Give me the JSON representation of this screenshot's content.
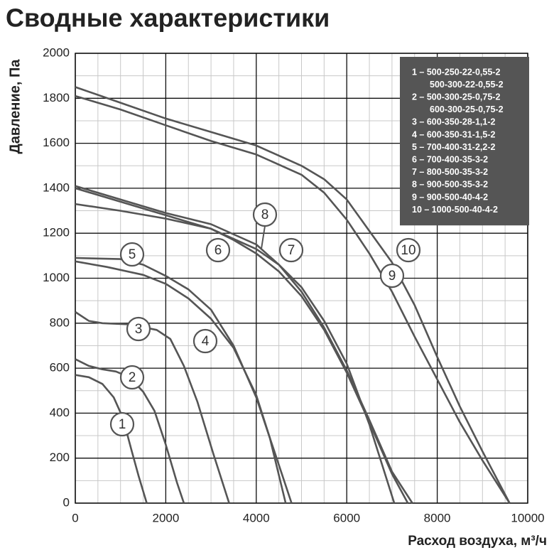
{
  "chart_data": {
    "type": "line",
    "title": "Сводные характеристики",
    "y_label": "Давление, Па",
    "x_label": "Расход воздуха, м³/ч",
    "xlim": [
      0,
      10000
    ],
    "xticks": [
      0,
      2000,
      4000,
      6000,
      8000,
      10000
    ],
    "ylim": [
      0,
      2000
    ],
    "yticks": [
      0,
      200,
      400,
      600,
      800,
      1000,
      1200,
      1400,
      1600,
      1800,
      2000
    ],
    "grid": true,
    "minor_grid": {
      "x_step": 500,
      "y_step": 100
    },
    "legend_position": "upper right",
    "series": [
      {
        "name": "1",
        "color": "#555555",
        "x": [
          0,
          300,
          600,
          850,
          1050,
          1250,
          1400,
          1580
        ],
        "values": [
          570,
          560,
          530,
          470,
          380,
          230,
          120,
          0
        ]
      },
      {
        "name": "2",
        "color": "#555555",
        "x": [
          0,
          300,
          600,
          900,
          1200,
          1500,
          1750,
          2000,
          2250,
          2400
        ],
        "values": [
          640,
          610,
          595,
          585,
          560,
          495,
          410,
          260,
          90,
          0
        ]
      },
      {
        "name": "3",
        "color": "#555555",
        "x": [
          0,
          300,
          600,
          1200,
          1800,
          2100,
          2400,
          2700,
          3050,
          3400
        ],
        "values": [
          850,
          810,
          800,
          795,
          770,
          730,
          610,
          450,
          220,
          0
        ]
      },
      {
        "name": "4",
        "color": "#555555",
        "x": [
          0,
          700,
          1500,
          2000,
          2500,
          3000,
          3500,
          4000,
          4300,
          4650
        ],
        "values": [
          1075,
          1050,
          1015,
          975,
          910,
          820,
          690,
          480,
          290,
          0
        ]
      },
      {
        "name": "5",
        "color": "#555555",
        "x": [
          0,
          1000,
          1500,
          2000,
          2500,
          3000,
          3500,
          4000,
          4400,
          4780
        ],
        "values": [
          1090,
          1085,
          1060,
          1010,
          950,
          860,
          700,
          470,
          230,
          0
        ]
      },
      {
        "name": "6",
        "color": "#555555",
        "x": [
          0,
          1000,
          2000,
          3000,
          4000,
          4500,
          5000,
          5500,
          6000,
          6500,
          7050
        ],
        "values": [
          1330,
          1300,
          1265,
          1220,
          1130,
          1060,
          960,
          810,
          620,
          350,
          0
        ]
      },
      {
        "name": "7",
        "color": "#555555",
        "x": [
          0,
          1000,
          2000,
          3000,
          4000,
          4500,
          5000,
          5500,
          6000,
          6500,
          7000,
          7450
        ],
        "values": [
          1410,
          1350,
          1290,
          1240,
          1150,
          1060,
          940,
          780,
          590,
          370,
          140,
          0
        ]
      },
      {
        "name": "8",
        "color": "#555555",
        "x": [
          0,
          1000,
          2000,
          3000,
          3500,
          4000,
          4500,
          5000,
          5500,
          6000,
          6500,
          7000,
          7350
        ],
        "values": [
          1400,
          1340,
          1280,
          1220,
          1170,
          1110,
          1030,
          920,
          770,
          580,
          360,
          130,
          0
        ]
      },
      {
        "name": "9",
        "color": "#555555",
        "x": [
          0,
          1000,
          2000,
          3000,
          4000,
          5000,
          5500,
          6000,
          6500,
          7000,
          7500,
          8000,
          8500,
          9000,
          9600
        ],
        "values": [
          1810,
          1750,
          1680,
          1610,
          1550,
          1460,
          1380,
          1260,
          1110,
          940,
          740,
          550,
          360,
          190,
          0
        ]
      },
      {
        "name": "10",
        "color": "#555555",
        "x": [
          0,
          1000,
          2000,
          3000,
          4000,
          5000,
          5500,
          6000,
          6500,
          7000,
          7500,
          8000,
          8500,
          9000,
          9600
        ],
        "values": [
          1850,
          1780,
          1710,
          1650,
          1590,
          1500,
          1440,
          1350,
          1210,
          1070,
          880,
          650,
          430,
          230,
          0
        ]
      }
    ],
    "legend": [
      {
        "lines": [
          "1 – 500-250-22-0,55-2",
          "500-300-22-0,55-2"
        ]
      },
      {
        "lines": [
          "2 – 500-300-25-0,75-2",
          "600-300-25-0,75-2"
        ]
      },
      {
        "lines": [
          "3 – 600-350-28-1,1-2"
        ]
      },
      {
        "lines": [
          "4 – 600-350-31-1,5-2"
        ]
      },
      {
        "lines": [
          "5 – 700-400-31-2,2-2"
        ]
      },
      {
        "lines": [
          "6 – 700-400-35-3-2"
        ]
      },
      {
        "lines": [
          "7 – 800-500-35-3-2"
        ]
      },
      {
        "lines": [
          "8 – 900-500-35-3-2"
        ]
      },
      {
        "lines": [
          "9 – 900-500-40-4-2"
        ]
      },
      {
        "lines": [
          "10 – 1000-500-40-4-2"
        ]
      }
    ]
  }
}
